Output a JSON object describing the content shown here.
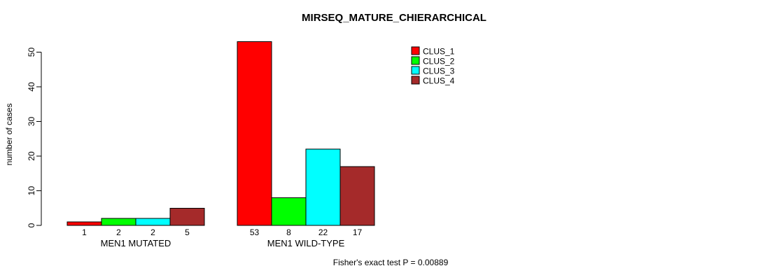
{
  "chart_data": {
    "type": "bar",
    "title": "MIRSEQ_MATURE_CHIERARCHICAL",
    "ylabel": "number of cases",
    "xlabel": "",
    "categories": [
      "MEN1 MUTATED",
      "MEN1 WILD-TYPE"
    ],
    "series": [
      {
        "name": "CLUS_1",
        "color": "#FF0000",
        "values": [
          1,
          53
        ]
      },
      {
        "name": "CLUS_2",
        "color": "#00FF00",
        "values": [
          2,
          8
        ]
      },
      {
        "name": "CLUS_3",
        "color": "#00FFFF",
        "values": [
          2,
          22
        ]
      },
      {
        "name": "CLUS_4",
        "color": "#A52A2A",
        "values": [
          5,
          17
        ]
      }
    ],
    "value_labels": [
      [
        1,
        2,
        2,
        5
      ],
      [
        53,
        8,
        22,
        17
      ]
    ],
    "ylim": [
      0,
      50
    ],
    "yticks": [
      0,
      10,
      20,
      30,
      40,
      50
    ],
    "grid": false,
    "legend_position": "top-right",
    "annotation": "Fisher's exact test P = 0.00889"
  },
  "colors": {
    "background": "#FFFFFF",
    "text": "#000000",
    "bar_border": "#000000"
  }
}
